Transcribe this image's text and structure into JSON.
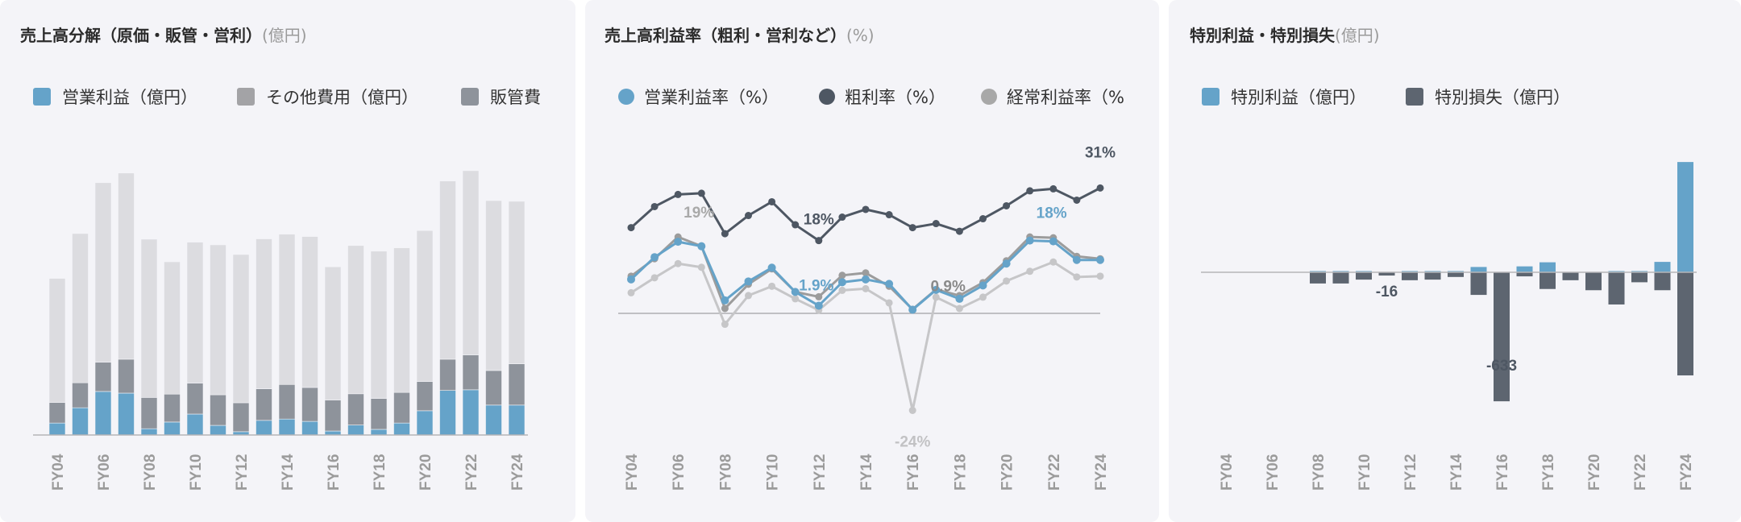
{
  "colors": {
    "blue": "#65a3c9",
    "dark": "#5d6570",
    "sga": "#8e939b",
    "other": "#a3a3a6",
    "cogs": "#dcdce0",
    "margin_gross": "#4e5763",
    "margin_ord": "#9c9c9c",
    "margin_net": "#c6c6c8",
    "axis": "#b5b5b8"
  },
  "panels": [
    {
      "title": "売上高分解（原価・販管・営利）",
      "unit": "(億円)",
      "legend": [
        {
          "label": "営業利益（億円）",
          "color": "#65a3c9"
        },
        {
          "label": "その他費用（億円）",
          "color": "#a3a3a6"
        },
        {
          "label": "販管費",
          "color": "#8e939b"
        }
      ]
    },
    {
      "title": "売上高利益率（粗利・営利など）",
      "unit": "(%)",
      "legend": [
        {
          "label": "営業利益率（%）",
          "color": "#65a3c9"
        },
        {
          "label": "粗利率（%）",
          "color": "#4e5763"
        },
        {
          "label": "経常利益率（%",
          "color": "#a8a8a8"
        }
      ]
    },
    {
      "title": "特別利益・特別損失",
      "unit": "(億円)",
      "legend": [
        {
          "label": "特別利益（億円）",
          "color": "#65a3c9"
        },
        {
          "label": "特別損失（億円）",
          "color": "#5d6570"
        }
      ]
    }
  ],
  "chart_data": [
    {
      "type": "bar",
      "stacked": true,
      "title": "売上高分解（原価・販管・営利）(億円)",
      "categories": [
        "FY04",
        "FY05",
        "FY06",
        "FY07",
        "FY08",
        "FY09",
        "FY10",
        "FY11",
        "FY12",
        "FY13",
        "FY14",
        "FY15",
        "FY16",
        "FY17",
        "FY18",
        "FY19",
        "FY20",
        "FY21",
        "FY22",
        "FY23",
        "FY24"
      ],
      "tick_labels": [
        "FY04",
        "FY06",
        "FY08",
        "FY10",
        "FY12",
        "FY14",
        "FY16",
        "FY18",
        "FY20",
        "FY22",
        "FY24"
      ],
      "series": [
        {
          "name": "営業利益（億円）",
          "values": [
            36,
            82,
            131,
            126,
            19,
            39,
            63,
            29,
            10,
            44,
            48,
            41,
            12,
            30,
            17,
            36,
            73,
            134,
            136,
            90,
            90
          ]
        },
        {
          "name": "販管費",
          "values": [
            62,
            75,
            88,
            102,
            94,
            84,
            93,
            92,
            87,
            95,
            104,
            102,
            93,
            94,
            93,
            92,
            88,
            94,
            105,
            104,
            124
          ]
        },
        {
          "name": "",
          "values": [
            373,
            449,
            540,
            560,
            476,
            398,
            424,
            451,
            446,
            451,
            452,
            454,
            401,
            446,
            443,
            435,
            454,
            536,
            554,
            511,
            489
          ]
        }
      ]
    },
    {
      "type": "line",
      "title": "売上高利益率（粗利・営利など）(%)",
      "categories": [
        "FY04",
        "FY05",
        "FY06",
        "FY07",
        "FY08",
        "FY09",
        "FY10",
        "FY11",
        "FY12",
        "FY13",
        "FY14",
        "FY15",
        "FY16",
        "FY17",
        "FY18",
        "FY19",
        "FY20",
        "FY21",
        "FY22",
        "FY23",
        "FY24"
      ],
      "tick_labels": [
        "FY04",
        "FY06",
        "FY08",
        "FY10",
        "FY12",
        "FY14",
        "FY16",
        "FY18",
        "FY20",
        "FY22",
        "FY24"
      ],
      "series": [
        {
          "name": "",
          "values": [
            5.1,
            8.8,
            12.3,
            11.4,
            -2.7,
            4.4,
            6.7,
            3.6,
            0.8,
            5.7,
            6.1,
            2.6,
            -24,
            4.0,
            1.2,
            4.0,
            8.0,
            10.4,
            12.7,
            9.0,
            9.2
          ]
        },
        {
          "name": "粗利率（%）",
          "values": [
            21.2,
            26.4,
            29.4,
            29.7,
            19.7,
            24.2,
            27.6,
            21.9,
            18,
            23.8,
            25.7,
            24.4,
            21.2,
            22.2,
            20.3,
            23.4,
            26.6,
            30.3,
            30.8,
            28.0,
            31
          ]
        },
        {
          "name": "経常利益率（%）",
          "values": [
            9.2,
            13.5,
            18.9,
            16.6,
            1.2,
            7.2,
            11.0,
            5.3,
            4.1,
            9.4,
            10.0,
            6.7,
            1.0,
            5.9,
            4.4,
            7.6,
            13.0,
            18.9,
            18.7,
            14.1,
            13.5
          ]
        },
        {
          "name": "営業利益率（%）",
          "values": [
            8.4,
            13.9,
            17.7,
            16.6,
            3.2,
            7.9,
            11.3,
            5.3,
            1.9,
            7.7,
            8.4,
            7.3,
            0.9,
            5.8,
            3.6,
            6.9,
            12.3,
            18,
            17.8,
            13.2,
            13.2
          ]
        }
      ],
      "annotations": [
        {
          "text": "31%",
          "series": 1,
          "index": 20
        },
        {
          "text": "18%",
          "series": 1,
          "index": 8
        },
        {
          "text": "19%",
          "series": 2,
          "index": 2
        },
        {
          "text": "18%",
          "series": 3,
          "index": 17
        },
        {
          "text": "1.9%",
          "series": 3,
          "index": 8
        },
        {
          "text": "0.9%",
          "series": 3,
          "index": 12
        },
        {
          "text": "-24%",
          "series": 0,
          "index": 12
        }
      ]
    },
    {
      "type": "bar",
      "title": "特別利益・特別損失(億円)",
      "categories": [
        "FY04",
        "FY05",
        "FY06",
        "FY07",
        "FY08",
        "FY09",
        "FY10",
        "FY11",
        "FY12",
        "FY13",
        "FY14",
        "FY15",
        "FY16",
        "FY17",
        "FY18",
        "FY19",
        "FY20",
        "FY21",
        "FY22",
        "FY23",
        "FY24"
      ],
      "tick_labels": [
        "FY04",
        "FY06",
        "FY08",
        "FY10",
        "FY12",
        "FY14",
        "FY16",
        "FY18",
        "FY20",
        "FY22",
        "FY24"
      ],
      "series": [
        {
          "name": "特別利益（億円）",
          "values": [
            null,
            null,
            null,
            null,
            3,
            6,
            5,
            0,
            3,
            5,
            3,
            26,
            0,
            29,
            49,
            0,
            0,
            2,
            3,
            51,
            541
          ]
        },
        {
          "name": "特別損失（億円）",
          "values": [
            null,
            null,
            null,
            null,
            -55,
            -55,
            -36,
            -16,
            -39,
            -36,
            -23,
            -111,
            -633,
            -20,
            -82,
            -39,
            -88,
            -158,
            -49,
            -88,
            -506
          ]
        }
      ],
      "annotations": [
        {
          "text": "-16",
          "series": 1,
          "index": 7
        },
        {
          "text": "-633",
          "series": 1,
          "index": 12
        }
      ]
    }
  ]
}
